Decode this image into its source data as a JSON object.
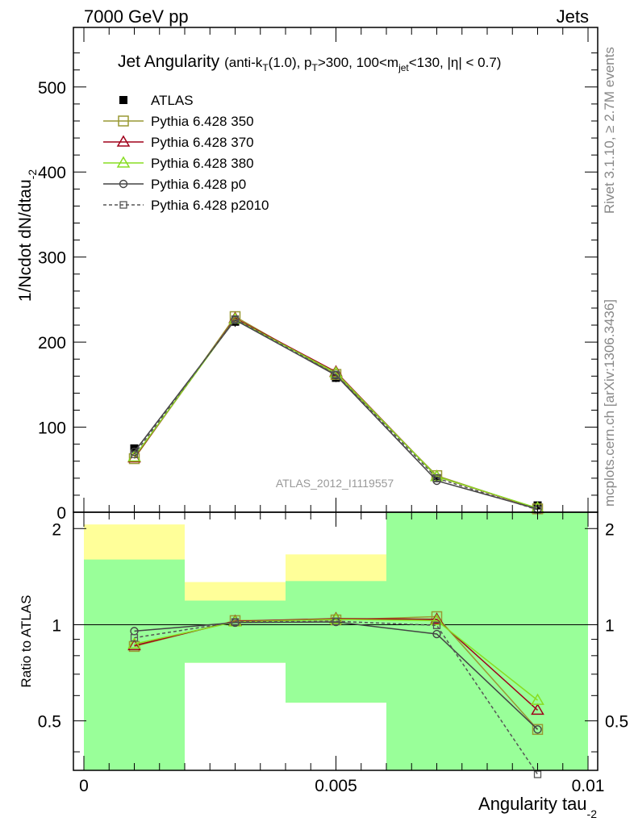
{
  "header": {
    "left": "7000 GeV pp",
    "right": "Jets"
  },
  "side_labels": {
    "rivet": "Rivet 3.1.10, ≥ 2.7M events",
    "mcplots": "mcplots.cern.ch [arXiv:1306.3436]"
  },
  "chart_data": {
    "type": "line",
    "title": {
      "main": "Jet Angularity",
      "p1": "(anti-k",
      "s1": "T",
      "p2": "(1.0), p",
      "s2": "T",
      "p3": ">300, 100<m",
      "s3": "jet",
      "p4": "<130, |η| < 0.7)"
    },
    "analysis_label": "ATLAS_2012_I1119557",
    "ylabel": {
      "main": "1/Ncdot dN/dtau",
      "sub": "-2"
    },
    "xlabel": {
      "main": "Angularity tau",
      "sub": "-2"
    },
    "ratio_ylabel": "Ratio to ATLAS",
    "xlim": [
      0,
      0.01
    ],
    "ylim": [
      0,
      570
    ],
    "ratio_ylim": [
      0.35,
      2.25
    ],
    "x_ticks": [
      {
        "value": 0,
        "label": "0"
      },
      {
        "value": 0.005,
        "label": "0.005"
      },
      {
        "value": 0.01,
        "label": "0.01"
      }
    ],
    "y_ticks": [
      {
        "value": 0,
        "label": "0"
      },
      {
        "value": 100,
        "label": "100"
      },
      {
        "value": 200,
        "label": "200"
      },
      {
        "value": 300,
        "label": "300"
      },
      {
        "value": 400,
        "label": "400"
      },
      {
        "value": 500,
        "label": "500"
      }
    ],
    "ratio_ticks": [
      {
        "value": 0.5,
        "label": "0.5"
      },
      {
        "value": 1,
        "label": "1"
      },
      {
        "value": 2,
        "label": "2"
      }
    ],
    "x": [
      0.001,
      0.003,
      0.005,
      0.007,
      0.009
    ],
    "data": {
      "name": "ATLAS",
      "values": [
        75,
        224,
        158,
        40,
        8
      ],
      "errors": [
        3,
        6,
        5,
        2,
        1
      ]
    },
    "series": [
      {
        "name": "Pythia 6.428 350",
        "color": "#999933",
        "marker": "square",
        "dash": false,
        "values": [
          63,
          230,
          162,
          43,
          3.9
        ],
        "ratio": [
          0.855,
          1.03,
          1.035,
          1.06,
          0.47
        ]
      },
      {
        "name": "Pythia 6.428 370",
        "color": "#a0001a",
        "marker": "triangle",
        "dash": false,
        "values": [
          64,
          228,
          165,
          42,
          4.4
        ],
        "ratio": [
          0.86,
          1.025,
          1.045,
          1.04,
          0.54
        ]
      },
      {
        "name": "Pythia 6.428 380",
        "color": "#88dd22",
        "marker": "triangle",
        "dash": false,
        "values": [
          65,
          227,
          164,
          42,
          4.8
        ],
        "ratio": [
          0.87,
          1.02,
          1.04,
          1.03,
          0.58
        ]
      },
      {
        "name": "Pythia 6.428 p0",
        "color": "#444444",
        "marker": "circle",
        "dash": false,
        "values": [
          71,
          226,
          161,
          37,
          3.8
        ],
        "ratio": [
          0.955,
          1.015,
          1.02,
          0.935,
          0.47
        ]
      },
      {
        "name": "Pythia 6.428 p2010",
        "color": "#555555",
        "marker": "square-small",
        "dash": true,
        "values": [
          68,
          227,
          162,
          40,
          2.8
        ],
        "ratio": [
          0.91,
          1.02,
          1.025,
          0.995,
          0.34
        ]
      }
    ],
    "error_bands": {
      "bins": [
        [
          0,
          0.002
        ],
        [
          0.002,
          0.004
        ],
        [
          0.004,
          0.006
        ],
        [
          0.006,
          0.008
        ],
        [
          0.008,
          0.01
        ]
      ],
      "green": [
        [
          0.35,
          1.6
        ],
        [
          0.76,
          1.19
        ],
        [
          0.57,
          1.37
        ],
        [
          0.35,
          2.25
        ],
        [
          0.35,
          2.25
        ]
      ],
      "yellow": [
        [
          0.35,
          2.06
        ],
        [
          0.76,
          1.36
        ],
        [
          0.57,
          1.66
        ],
        [
          0.35,
          2.25
        ],
        [
          0.35,
          2.25
        ]
      ],
      "green_color": "#99ff99",
      "yellow_color": "#ffff99"
    },
    "grid": false,
    "legend_position": "top-left"
  }
}
